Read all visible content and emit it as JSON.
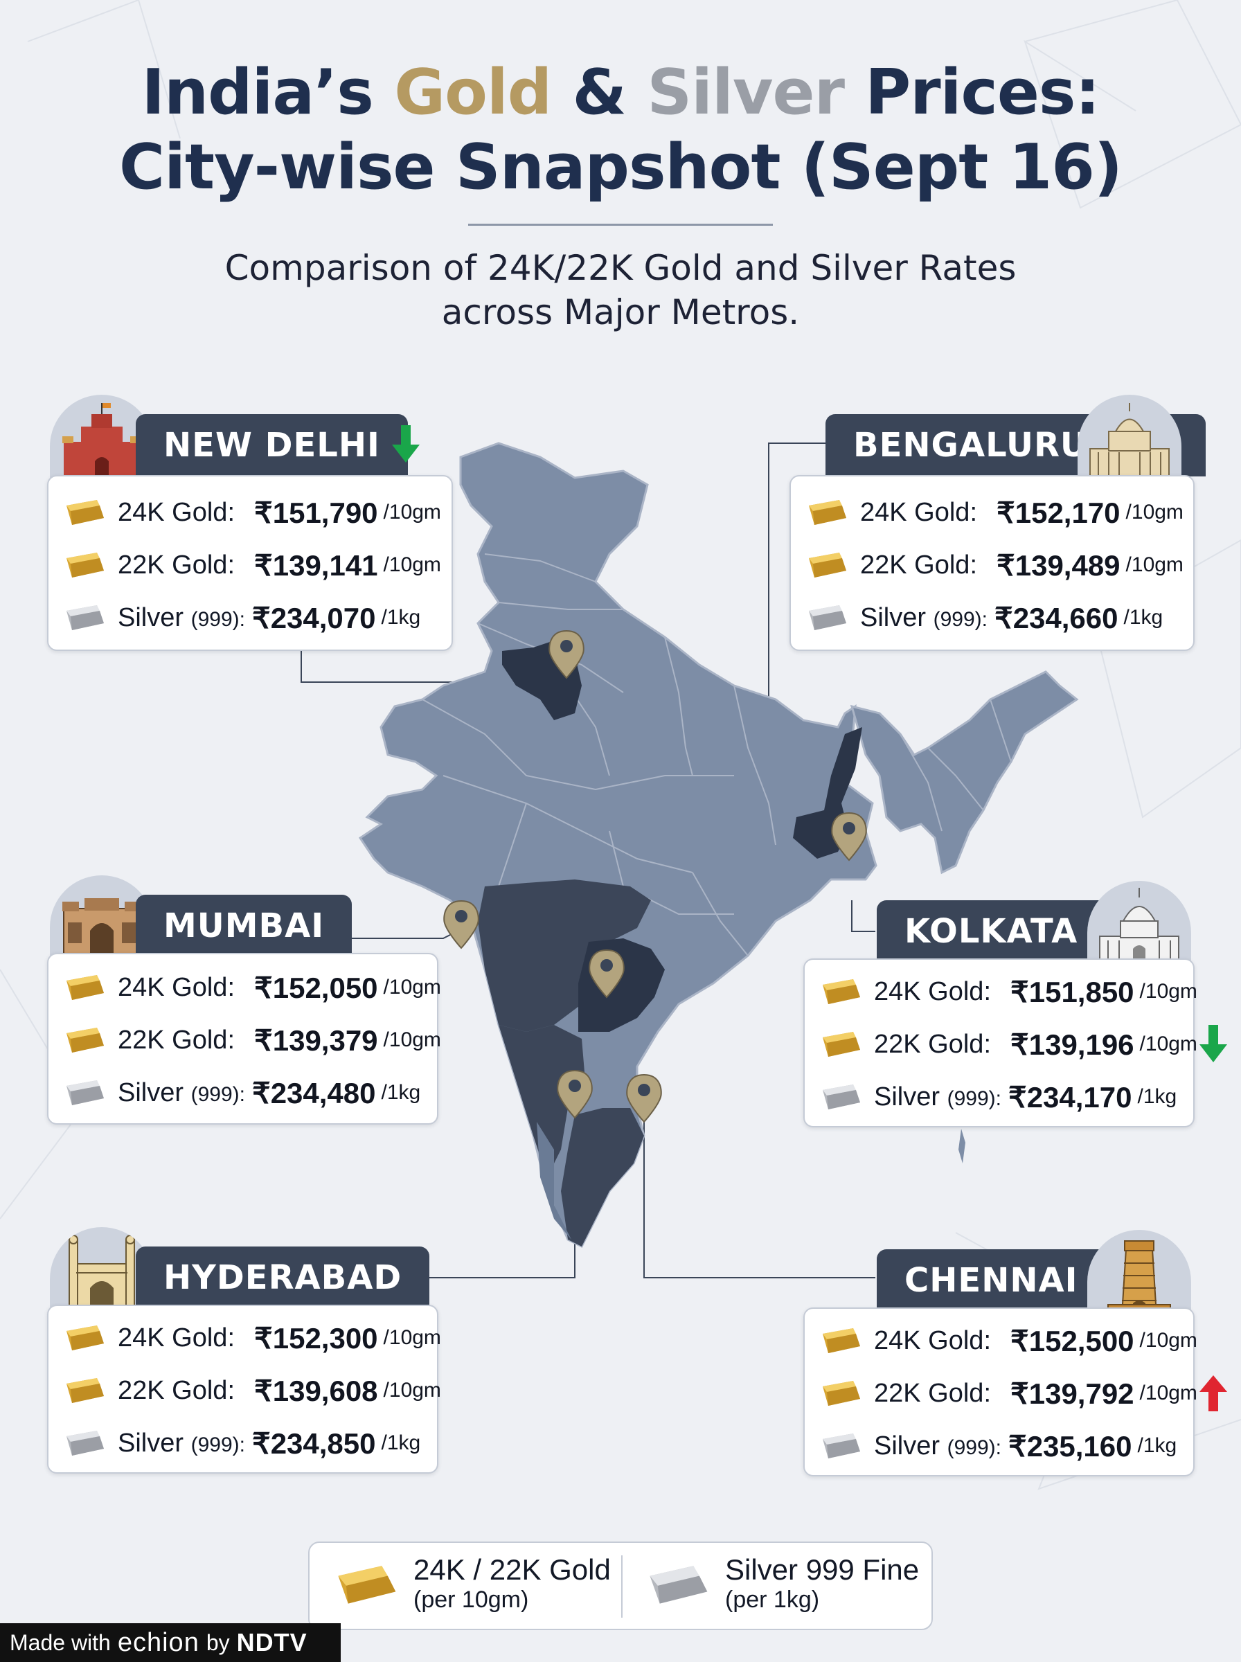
{
  "header": {
    "title_line1_part1": "India’s ",
    "title_line1_gold": "Gold",
    "title_line1_amp": " & ",
    "title_line1_silver": "Silver",
    "title_line1_part2": " Prices:",
    "title_line2": "City-wise Snapshot (Sept 16)",
    "subtitle_line1": "Comparison of 24K/22K Gold and Silver Rates",
    "subtitle_line2": "across Major Metros."
  },
  "labels": {
    "gold24": "24K Gold:",
    "gold22": "22K Gold:",
    "silver": "Silver",
    "silver_purity": "(999):",
    "unit_gold": "/10gm",
    "unit_silver": "/1kg"
  },
  "cities": {
    "new_delhi": {
      "name": "NEW DELHI",
      "gold24": "₹151,790",
      "gold22": "₹139,141",
      "silver": "₹234,070",
      "trend": "down"
    },
    "bengaluru": {
      "name": "BENGALURU",
      "gold24": "₹152,170",
      "gold22": "₹139,489",
      "silver": "₹234,660"
    },
    "mumbai": {
      "name": "MUMBAI",
      "gold24": "₹152,050",
      "gold22": "₹139,379",
      "silver": "₹234,480"
    },
    "kolkata": {
      "name": "KOLKATA",
      "gold24": "₹151,850",
      "gold22": "₹139,196",
      "silver": "₹234,170",
      "trend": "down"
    },
    "hyderabad": {
      "name": "HYDERABAD",
      "gold24": "₹152,300",
      "gold22": "₹139,608",
      "silver": "₹234,850"
    },
    "chennai": {
      "name": "CHENNAI",
      "gold24": "₹152,500",
      "gold22": "₹139,792",
      "silver": "₹235,160",
      "trend": "up"
    }
  },
  "legend": {
    "gold_title": "24K / 22K Gold",
    "gold_unit": "(per 10gm)",
    "silver_title": "Silver 999 Fine",
    "silver_unit": "(per 1kg)"
  },
  "footer": {
    "made_with": "Made with",
    "brand": "echion",
    "by": "by",
    "ndtv": "NDTV"
  },
  "colors": {
    "title_navy": "#1f2f4e",
    "gold_accent": "#b59a62",
    "silver_accent": "#9a9ea6",
    "tab_bg": "#3a4558",
    "map_light": "#7d8da6",
    "map_dark": "#3a4558",
    "pin": "#b3a47e",
    "trend_down": "#1aa64a",
    "trend_up": "#e02530"
  }
}
